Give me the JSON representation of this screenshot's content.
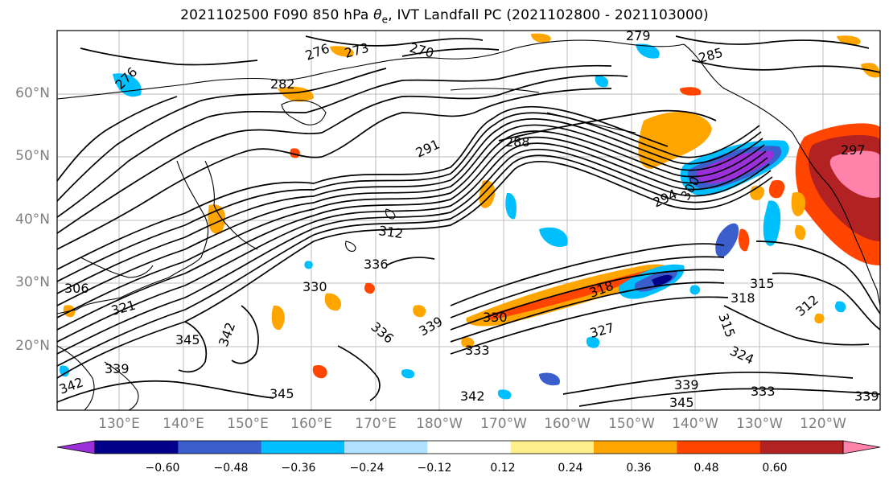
{
  "title": "2021102500 F090 850 hPa",
  "title_var_main": "θ",
  "title_var_sub": "e",
  "title_rest": ", IVT Landfall PC (2021102800 - 2021103000)",
  "lat_labels": [
    "60°N",
    "50°N",
    "40°N",
    "30°N",
    "20°N"
  ],
  "lon_labels": [
    "130°E",
    "140°E",
    "150°E",
    "160°E",
    "170°E",
    "180°W",
    "170°W",
    "160°W",
    "150°W",
    "140°W",
    "130°W",
    "120°W"
  ],
  "contour_labels": [
    "276",
    "273",
    "270",
    "279",
    "285",
    "282",
    "276",
    "291",
    "288",
    "294",
    "300",
    "297",
    "312",
    "306",
    "321",
    "336",
    "330",
    "345",
    "342",
    "339",
    "342",
    "345",
    "333",
    "336",
    "339",
    "330",
    "327",
    "318",
    "315",
    "318",
    "315",
    "312",
    "324",
    "339",
    "345",
    "333",
    "342",
    "339"
  ],
  "colorbar": {
    "ticks": [
      "−0.60",
      "−0.48",
      "−0.36",
      "−0.24",
      "−0.12",
      "0.12",
      "0.24",
      "0.36",
      "0.48",
      "0.60"
    ],
    "colors": [
      "#9b30d9",
      "#00008b",
      "#3a5fcd",
      "#00bfff",
      "#b0e2ff",
      "#ffffff",
      "#fff08c",
      "#ffa500",
      "#ff4500",
      "#b22222",
      "#ff82ab"
    ]
  }
}
